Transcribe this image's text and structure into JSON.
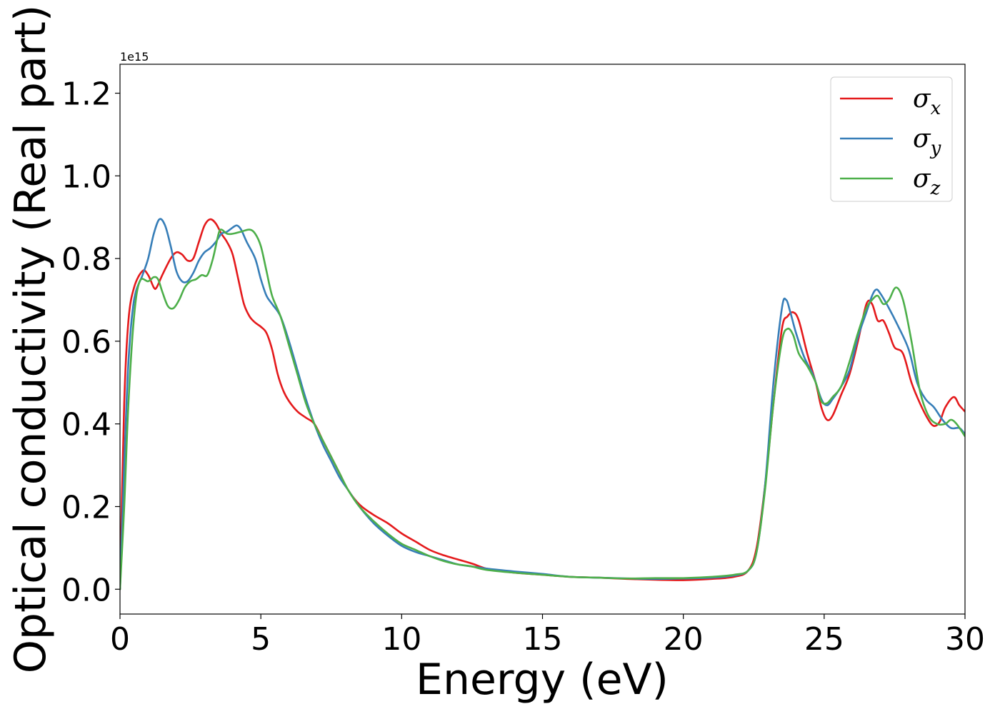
{
  "chart_data": {
    "type": "line",
    "title": "",
    "xlabel": "Energy (eV)",
    "ylabel": "Optical conductivity (Real part)",
    "y_offset_text": "1e15",
    "xlim": [
      0,
      30
    ],
    "ylim": [
      -0.06,
      1.27
    ],
    "x_ticks": [
      0,
      5,
      10,
      15,
      20,
      25,
      30
    ],
    "x_tick_labels": [
      "0",
      "5",
      "10",
      "15",
      "20",
      "25",
      "30"
    ],
    "y_ticks": [
      0.0,
      0.2,
      0.4,
      0.6,
      0.8,
      1.0,
      1.2
    ],
    "y_tick_labels": [
      "0.0",
      "0.2",
      "0.4",
      "0.6",
      "0.8",
      "1.0",
      "1.2"
    ],
    "grid": false,
    "legend_position": "top-right",
    "colors": {
      "sigma_x": "#e41a1c",
      "sigma_y": "#377eb8",
      "sigma_z": "#4daf4a"
    },
    "series": [
      {
        "name": "σx",
        "legend_base": "σ",
        "legend_sub": "x",
        "color": "#e41a1c",
        "points": [
          [
            0,
            0
          ],
          [
            0.15,
            0.45
          ],
          [
            0.3,
            0.65
          ],
          [
            0.5,
            0.73
          ],
          [
            0.8,
            0.77
          ],
          [
            1.0,
            0.76
          ],
          [
            1.2,
            0.73
          ],
          [
            1.3,
            0.73
          ],
          [
            1.5,
            0.76
          ],
          [
            1.8,
            0.8
          ],
          [
            2.0,
            0.815
          ],
          [
            2.2,
            0.81
          ],
          [
            2.4,
            0.795
          ],
          [
            2.6,
            0.8
          ],
          [
            2.8,
            0.84
          ],
          [
            3.0,
            0.88
          ],
          [
            3.2,
            0.895
          ],
          [
            3.4,
            0.885
          ],
          [
            3.6,
            0.86
          ],
          [
            3.8,
            0.84
          ],
          [
            4.0,
            0.81
          ],
          [
            4.2,
            0.75
          ],
          [
            4.4,
            0.69
          ],
          [
            4.6,
            0.66
          ],
          [
            4.8,
            0.645
          ],
          [
            5.0,
            0.635
          ],
          [
            5.2,
            0.62
          ],
          [
            5.4,
            0.58
          ],
          [
            5.6,
            0.52
          ],
          [
            5.8,
            0.48
          ],
          [
            6.0,
            0.455
          ],
          [
            6.3,
            0.43
          ],
          [
            6.6,
            0.415
          ],
          [
            6.9,
            0.4
          ],
          [
            7.2,
            0.36
          ],
          [
            7.5,
            0.32
          ],
          [
            7.8,
            0.28
          ],
          [
            8.1,
            0.24
          ],
          [
            8.5,
            0.205
          ],
          [
            9.0,
            0.18
          ],
          [
            9.5,
            0.16
          ],
          [
            10.0,
            0.135
          ],
          [
            10.5,
            0.115
          ],
          [
            11.0,
            0.095
          ],
          [
            11.5,
            0.082
          ],
          [
            12.0,
            0.072
          ],
          [
            12.5,
            0.062
          ],
          [
            13.0,
            0.05
          ],
          [
            13.5,
            0.045
          ],
          [
            14.0,
            0.04
          ],
          [
            15.0,
            0.035
          ],
          [
            16.0,
            0.03
          ],
          [
            17.0,
            0.028
          ],
          [
            18.0,
            0.025
          ],
          [
            19.0,
            0.023
          ],
          [
            20.0,
            0.022
          ],
          [
            21.0,
            0.025
          ],
          [
            21.8,
            0.03
          ],
          [
            22.3,
            0.045
          ],
          [
            22.6,
            0.1
          ],
          [
            22.9,
            0.25
          ],
          [
            23.2,
            0.45
          ],
          [
            23.5,
            0.63
          ],
          [
            23.7,
            0.66
          ],
          [
            23.9,
            0.67
          ],
          [
            24.1,
            0.65
          ],
          [
            24.4,
            0.57
          ],
          [
            24.7,
            0.5
          ],
          [
            24.9,
            0.44
          ],
          [
            25.1,
            0.41
          ],
          [
            25.3,
            0.42
          ],
          [
            25.6,
            0.47
          ],
          [
            25.9,
            0.52
          ],
          [
            26.2,
            0.6
          ],
          [
            26.5,
            0.69
          ],
          [
            26.7,
            0.69
          ],
          [
            26.9,
            0.65
          ],
          [
            27.1,
            0.65
          ],
          [
            27.3,
            0.62
          ],
          [
            27.5,
            0.585
          ],
          [
            27.8,
            0.57
          ],
          [
            28.1,
            0.5
          ],
          [
            28.4,
            0.45
          ],
          [
            28.7,
            0.41
          ],
          [
            28.9,
            0.395
          ],
          [
            29.1,
            0.405
          ],
          [
            29.3,
            0.44
          ],
          [
            29.6,
            0.465
          ],
          [
            29.8,
            0.445
          ],
          [
            30.0,
            0.43
          ]
        ]
      },
      {
        "name": "σy",
        "legend_base": "σ",
        "legend_sub": "y",
        "color": "#377eb8",
        "points": [
          [
            0,
            0
          ],
          [
            0.15,
            0.3
          ],
          [
            0.3,
            0.55
          ],
          [
            0.5,
            0.7
          ],
          [
            0.8,
            0.76
          ],
          [
            1.0,
            0.8
          ],
          [
            1.2,
            0.86
          ],
          [
            1.4,
            0.895
          ],
          [
            1.6,
            0.88
          ],
          [
            1.8,
            0.83
          ],
          [
            2.0,
            0.77
          ],
          [
            2.2,
            0.745
          ],
          [
            2.4,
            0.745
          ],
          [
            2.6,
            0.765
          ],
          [
            2.8,
            0.795
          ],
          [
            3.0,
            0.815
          ],
          [
            3.2,
            0.825
          ],
          [
            3.4,
            0.84
          ],
          [
            3.6,
            0.86
          ],
          [
            3.8,
            0.865
          ],
          [
            4.0,
            0.875
          ],
          [
            4.15,
            0.88
          ],
          [
            4.3,
            0.87
          ],
          [
            4.5,
            0.84
          ],
          [
            4.8,
            0.8
          ],
          [
            5.0,
            0.75
          ],
          [
            5.2,
            0.71
          ],
          [
            5.4,
            0.69
          ],
          [
            5.7,
            0.66
          ],
          [
            6.0,
            0.6
          ],
          [
            6.3,
            0.53
          ],
          [
            6.6,
            0.46
          ],
          [
            6.9,
            0.4
          ],
          [
            7.2,
            0.35
          ],
          [
            7.5,
            0.31
          ],
          [
            7.8,
            0.27
          ],
          [
            8.1,
            0.24
          ],
          [
            8.5,
            0.2
          ],
          [
            9.0,
            0.16
          ],
          [
            9.5,
            0.13
          ],
          [
            10.0,
            0.105
          ],
          [
            10.5,
            0.09
          ],
          [
            11.0,
            0.08
          ],
          [
            11.5,
            0.07
          ],
          [
            12.0,
            0.06
          ],
          [
            12.5,
            0.055
          ],
          [
            13.0,
            0.05
          ],
          [
            14.0,
            0.043
          ],
          [
            15.0,
            0.037
          ],
          [
            16.0,
            0.03
          ],
          [
            17.0,
            0.028
          ],
          [
            18.0,
            0.026
          ],
          [
            19.0,
            0.025
          ],
          [
            20.0,
            0.026
          ],
          [
            21.0,
            0.028
          ],
          [
            21.8,
            0.033
          ],
          [
            22.3,
            0.045
          ],
          [
            22.6,
            0.09
          ],
          [
            22.9,
            0.25
          ],
          [
            23.2,
            0.5
          ],
          [
            23.5,
            0.68
          ],
          [
            23.65,
            0.7
          ],
          [
            23.8,
            0.67
          ],
          [
            24.0,
            0.62
          ],
          [
            24.3,
            0.56
          ],
          [
            24.6,
            0.52
          ],
          [
            24.9,
            0.46
          ],
          [
            25.1,
            0.445
          ],
          [
            25.3,
            0.46
          ],
          [
            25.6,
            0.49
          ],
          [
            25.9,
            0.53
          ],
          [
            26.2,
            0.61
          ],
          [
            26.5,
            0.67
          ],
          [
            26.7,
            0.71
          ],
          [
            26.85,
            0.725
          ],
          [
            27.0,
            0.715
          ],
          [
            27.3,
            0.68
          ],
          [
            27.6,
            0.64
          ],
          [
            28.0,
            0.58
          ],
          [
            28.3,
            0.5
          ],
          [
            28.6,
            0.46
          ],
          [
            28.9,
            0.44
          ],
          [
            29.2,
            0.41
          ],
          [
            29.5,
            0.39
          ],
          [
            29.8,
            0.39
          ],
          [
            30.0,
            0.375
          ]
        ]
      },
      {
        "name": "σz",
        "legend_base": "σ",
        "legend_sub": "z",
        "color": "#4daf4a",
        "points": [
          [
            0,
            0
          ],
          [
            0.15,
            0.2
          ],
          [
            0.3,
            0.45
          ],
          [
            0.5,
            0.66
          ],
          [
            0.7,
            0.745
          ],
          [
            1.0,
            0.745
          ],
          [
            1.2,
            0.755
          ],
          [
            1.35,
            0.75
          ],
          [
            1.5,
            0.72
          ],
          [
            1.7,
            0.685
          ],
          [
            1.9,
            0.68
          ],
          [
            2.1,
            0.7
          ],
          [
            2.3,
            0.73
          ],
          [
            2.5,
            0.745
          ],
          [
            2.7,
            0.75
          ],
          [
            2.9,
            0.76
          ],
          [
            3.1,
            0.76
          ],
          [
            3.3,
            0.8
          ],
          [
            3.5,
            0.86
          ],
          [
            3.6,
            0.87
          ],
          [
            3.8,
            0.86
          ],
          [
            4.0,
            0.86
          ],
          [
            4.3,
            0.865
          ],
          [
            4.6,
            0.87
          ],
          [
            4.8,
            0.86
          ],
          [
            5.0,
            0.83
          ],
          [
            5.2,
            0.77
          ],
          [
            5.4,
            0.71
          ],
          [
            5.7,
            0.66
          ],
          [
            6.0,
            0.59
          ],
          [
            6.3,
            0.52
          ],
          [
            6.6,
            0.45
          ],
          [
            6.9,
            0.4
          ],
          [
            7.2,
            0.36
          ],
          [
            7.5,
            0.32
          ],
          [
            7.8,
            0.28
          ],
          [
            8.1,
            0.24
          ],
          [
            8.5,
            0.2
          ],
          [
            9.0,
            0.165
          ],
          [
            9.5,
            0.135
          ],
          [
            10.0,
            0.11
          ],
          [
            10.5,
            0.095
          ],
          [
            11.0,
            0.08
          ],
          [
            11.5,
            0.068
          ],
          [
            12.0,
            0.06
          ],
          [
            12.5,
            0.055
          ],
          [
            13.0,
            0.047
          ],
          [
            14.0,
            0.04
          ],
          [
            15.0,
            0.035
          ],
          [
            16.0,
            0.03
          ],
          [
            17.0,
            0.028
          ],
          [
            18.0,
            0.026
          ],
          [
            19.0,
            0.027
          ],
          [
            20.0,
            0.027
          ],
          [
            21.0,
            0.03
          ],
          [
            21.8,
            0.035
          ],
          [
            22.3,
            0.045
          ],
          [
            22.6,
            0.09
          ],
          [
            22.9,
            0.24
          ],
          [
            23.2,
            0.45
          ],
          [
            23.5,
            0.6
          ],
          [
            23.7,
            0.63
          ],
          [
            23.9,
            0.615
          ],
          [
            24.1,
            0.57
          ],
          [
            24.4,
            0.54
          ],
          [
            24.7,
            0.5
          ],
          [
            24.9,
            0.455
          ],
          [
            25.1,
            0.45
          ],
          [
            25.3,
            0.465
          ],
          [
            25.6,
            0.49
          ],
          [
            25.9,
            0.55
          ],
          [
            26.2,
            0.62
          ],
          [
            26.5,
            0.68
          ],
          [
            26.7,
            0.7
          ],
          [
            26.9,
            0.71
          ],
          [
            27.1,
            0.69
          ],
          [
            27.3,
            0.7
          ],
          [
            27.55,
            0.73
          ],
          [
            27.8,
            0.7
          ],
          [
            28.1,
            0.6
          ],
          [
            28.4,
            0.48
          ],
          [
            28.7,
            0.42
          ],
          [
            29.0,
            0.4
          ],
          [
            29.3,
            0.4
          ],
          [
            29.5,
            0.41
          ],
          [
            29.7,
            0.4
          ],
          [
            30.0,
            0.37
          ]
        ]
      }
    ]
  }
}
